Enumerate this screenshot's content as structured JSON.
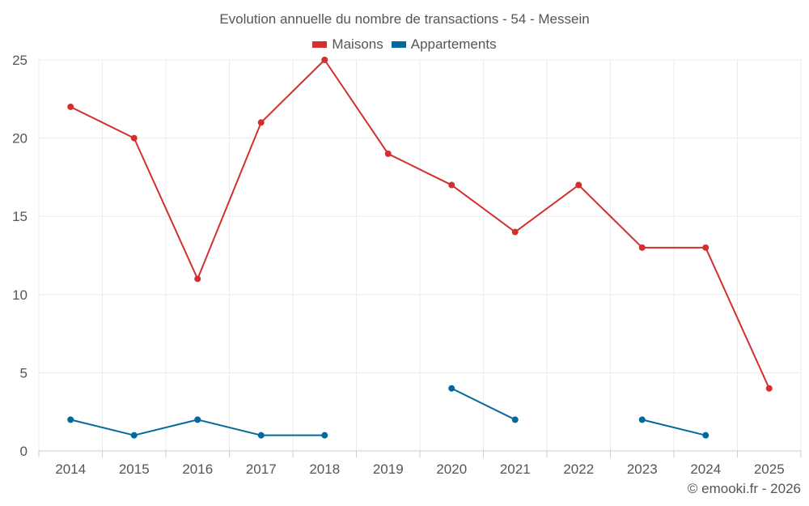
{
  "chart_data": {
    "type": "line",
    "title": "Evolution annuelle du nombre de transactions - 54 - Messein",
    "categories": [
      "2014",
      "2015",
      "2016",
      "2017",
      "2018",
      "2019",
      "2020",
      "2021",
      "2022",
      "2023",
      "2024",
      "2025"
    ],
    "series": [
      {
        "name": "Maisons",
        "color": "#d32f2f",
        "values": [
          22,
          20,
          11,
          21,
          25,
          19,
          17,
          14,
          17,
          13,
          13,
          4
        ]
      },
      {
        "name": "Appartements",
        "color": "#01699c",
        "values": [
          2,
          1,
          2,
          1,
          1,
          null,
          4,
          2,
          null,
          2,
          1,
          null
        ]
      }
    ],
    "ylim": [
      0,
      25
    ],
    "yticks": [
      0,
      5,
      10,
      15,
      20,
      25
    ],
    "xlabel": "",
    "ylabel": "",
    "grid": true,
    "legend": "top-center"
  },
  "footer": {
    "copyright": "© emooki.fr - 2026"
  }
}
